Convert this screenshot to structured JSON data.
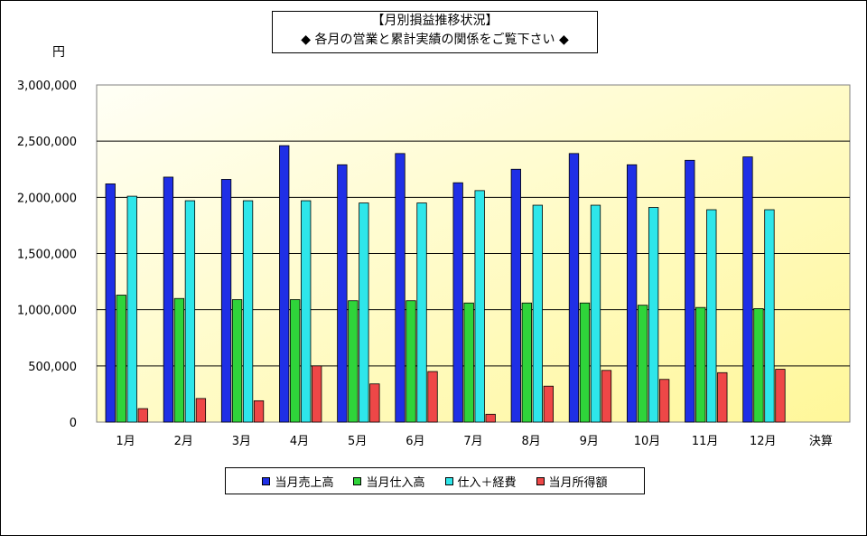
{
  "chart_data": {
    "type": "bar",
    "title_line1": "【月別損益推移状況】",
    "title_line2": "◆ 各月の営業と累計実績の関係をご覧下さい ◆",
    "unit": "円",
    "categories": [
      "1月",
      "2月",
      "3月",
      "4月",
      "5月",
      "6月",
      "7月",
      "8月",
      "9月",
      "10月",
      "11月",
      "12月",
      "決算"
    ],
    "y_ticks": [
      "0",
      "500,000",
      "1,000,000",
      "1,500,000",
      "2,000,000",
      "2,500,000",
      "3,000,000"
    ],
    "ylim": [
      0,
      3000000
    ],
    "grid": true,
    "legend_position": "bottom",
    "series": [
      {
        "name": "当月売上高",
        "color": "#1f2fe6",
        "values": [
          2120000,
          2180000,
          2160000,
          2460000,
          2290000,
          2390000,
          2130000,
          2250000,
          2390000,
          2290000,
          2330000,
          2360000,
          null
        ]
      },
      {
        "name": "当月仕入高",
        "color": "#2fd43a",
        "values": [
          1130000,
          1100000,
          1090000,
          1090000,
          1080000,
          1080000,
          1060000,
          1060000,
          1060000,
          1040000,
          1020000,
          1010000,
          null
        ]
      },
      {
        "name": "仕入＋経費",
        "color": "#2ee6ea",
        "values": [
          2010000,
          1970000,
          1970000,
          1970000,
          1950000,
          1950000,
          2060000,
          1930000,
          1930000,
          1910000,
          1890000,
          1890000,
          null
        ]
      },
      {
        "name": "当月所得額",
        "color": "#ee4747",
        "values": [
          120000,
          210000,
          190000,
          500000,
          340000,
          450000,
          70000,
          320000,
          460000,
          380000,
          440000,
          470000,
          null
        ]
      }
    ]
  }
}
